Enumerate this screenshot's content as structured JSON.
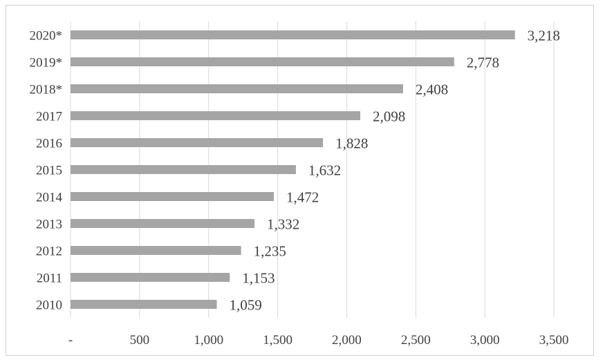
{
  "chart_data": {
    "type": "bar",
    "orientation": "horizontal",
    "title": "",
    "xlabel": "",
    "ylabel": "",
    "categories": [
      "2020*",
      "2019*",
      "2018*",
      "2017",
      "2016",
      "2015",
      "2014",
      "2013",
      "2012",
      "2011",
      "2010"
    ],
    "values": [
      3218,
      2778,
      2408,
      2098,
      1828,
      1632,
      1472,
      1332,
      1235,
      1153,
      1059
    ],
    "value_labels": [
      "3,218",
      "2,778",
      "2,408",
      "2,098",
      "1,828",
      "1,632",
      "1,472",
      "1,332",
      "1,235",
      "1,153",
      "1,059"
    ],
    "xlim": [
      0,
      3500
    ],
    "x_ticks": [
      0,
      500,
      1000,
      1500,
      2000,
      2500,
      3000,
      3500
    ],
    "x_tick_labels": [
      "-",
      "500",
      "1,000",
      "1,500",
      "2,000",
      "2,500",
      "3,000",
      "3,500"
    ],
    "grid": "vertical",
    "legend": "none",
    "bar_color": "#a5a5a5",
    "grid_color": "#d9d9d9"
  }
}
